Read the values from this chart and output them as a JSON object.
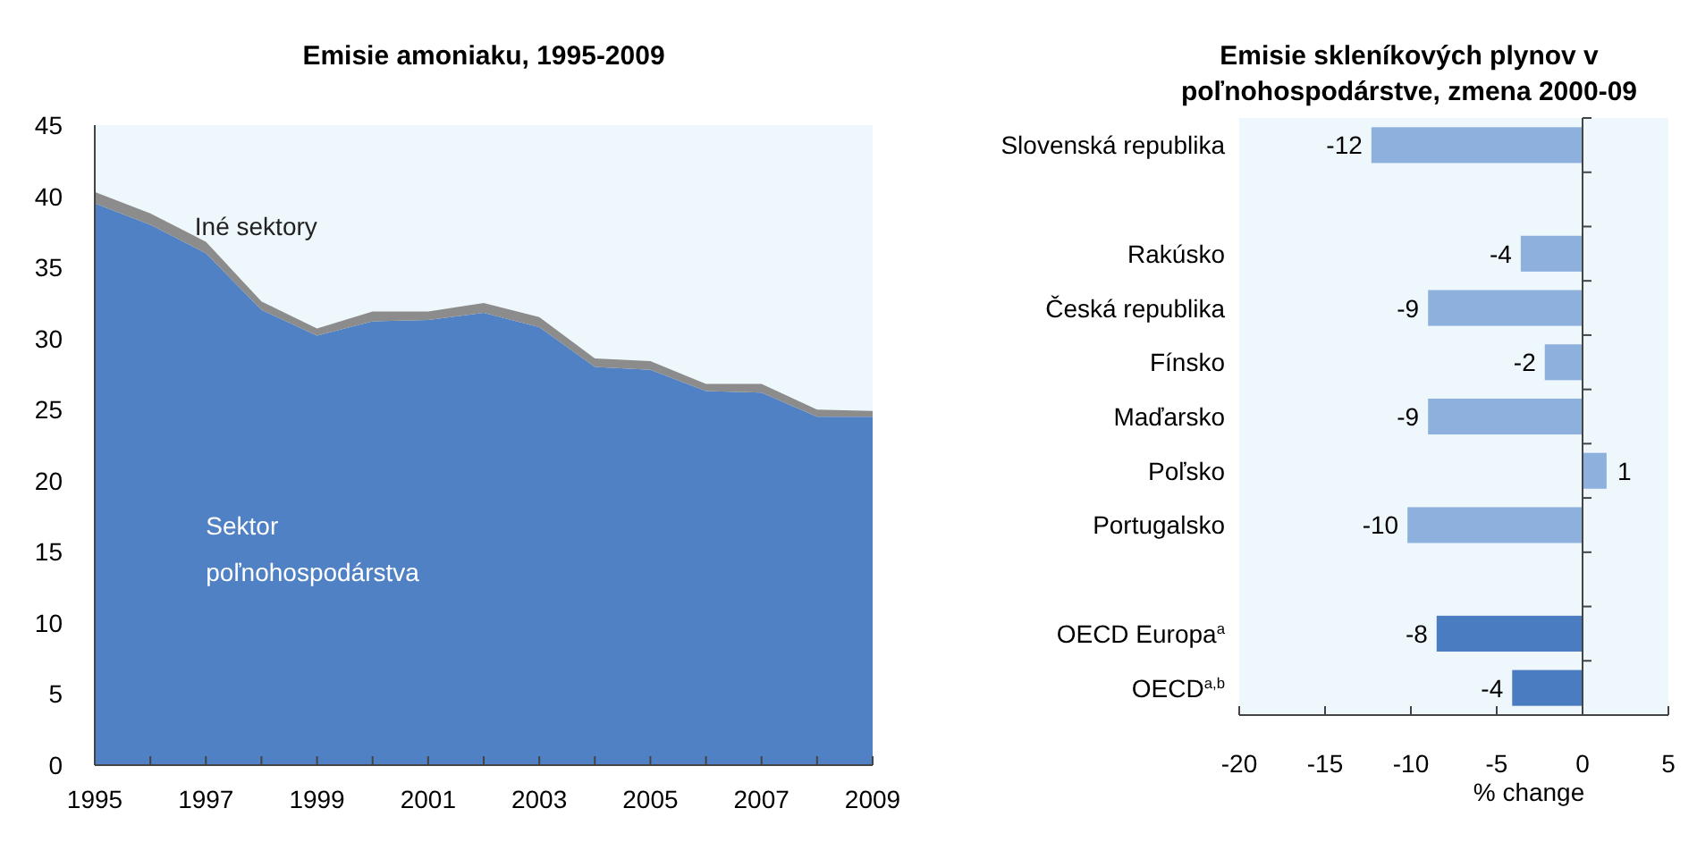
{
  "chart_data": [
    {
      "type": "area",
      "title": "Emisie amoniaku, 1995-2009",
      "stacked": true,
      "x": [
        1995,
        1996,
        1997,
        1998,
        1999,
        2000,
        2001,
        2002,
        2003,
        2004,
        2005,
        2006,
        2007,
        2008,
        2009
      ],
      "series": [
        {
          "name": "Sektor poľnohospodárstva",
          "color": "#4f81c4",
          "values": [
            39.5,
            38,
            36,
            32,
            30.2,
            31.2,
            31.3,
            31.8,
            30.8,
            28,
            27.8,
            26.3,
            26.2,
            24.5,
            24.5
          ]
        },
        {
          "name": "Iné sektory",
          "color": "#8c8c8c",
          "values": [
            0.8,
            0.8,
            0.8,
            0.6,
            0.5,
            0.7,
            0.6,
            0.7,
            0.7,
            0.6,
            0.6,
            0.5,
            0.6,
            0.5,
            0.4
          ]
        }
      ],
      "xlim": [
        1995,
        2009
      ],
      "xticks": [
        1995,
        {
          "value": 1996,
          "label": null
        },
        1997,
        {
          "value": 1998,
          "label": null
        },
        1999,
        {
          "value": 2000,
          "label": null
        },
        2001,
        {
          "value": 2002,
          "label": null
        },
        2003,
        {
          "value": 2004,
          "label": null
        },
        2005,
        {
          "value": 2006,
          "label": null
        },
        2007,
        {
          "value": 2008,
          "label": null
        },
        2009
      ],
      "ylim": [
        0,
        45
      ],
      "yticks": [
        0,
        5,
        10,
        15,
        20,
        25,
        30,
        35,
        40,
        45
      ]
    },
    {
      "type": "bar",
      "orientation": "horizontal",
      "title": "Emisie skleníkových plynov v poľnohospodárstve, zmena 2000-09",
      "xlabel": "% change",
      "categories": [
        "Slovenská republika",
        null,
        "Rakúsko",
        "Česká republika",
        "Fínsko",
        "Maďarsko",
        "Poľsko",
        "Portugalsko",
        null,
        "OECD Europa$^{a}$",
        "OECD$^{a,b}$"
      ],
      "values": [
        -12.3,
        null,
        -3.6,
        -9,
        -2.2,
        -9,
        1.4,
        -10.2,
        null,
        -8.5,
        -4.1
      ],
      "value_labels": [
        "-12",
        null,
        "-4",
        "-9",
        "-2",
        "-9",
        "1",
        "-10",
        null,
        "-8",
        "-4"
      ],
      "colors": [
        "#8db0dc",
        null,
        "#8db0dc",
        "#8db0dc",
        "#8db0dc",
        "#8db0dc",
        "#8db0dc",
        "#8db0dc",
        null,
        "#4a7cc2",
        "#4a7cc2"
      ],
      "xlim": [
        -20,
        5
      ],
      "xticks": [
        -20,
        -15,
        -10,
        -5,
        0,
        5
      ]
    }
  ]
}
